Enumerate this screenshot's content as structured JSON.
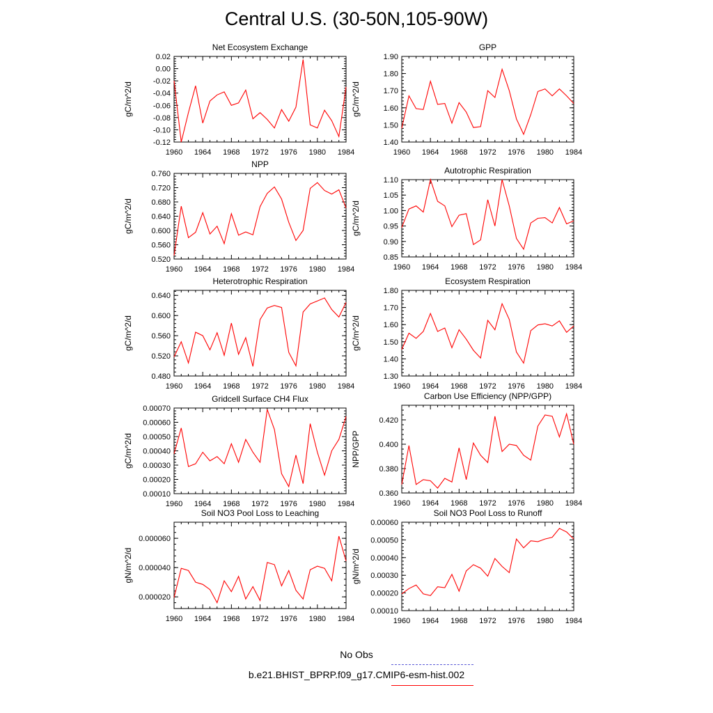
{
  "title": "Central U.S. (30-50N,105-90W)",
  "legend": {
    "entries": [
      {
        "label": "No Obs",
        "color": "#5b5bd6",
        "style": "dashed"
      },
      {
        "label": "b.e21.BHIST_BPRP.f09_g17.CMIP6-esm-hist.002",
        "color": "#ff0000",
        "style": "solid"
      }
    ]
  },
  "chart_data": [
    {
      "type": "line",
      "title": "Net Ecosystem Exchange",
      "ylabel": "gC/m^2/d",
      "xlim": [
        1960,
        1984
      ],
      "ylim": [
        -0.12,
        0.02
      ],
      "xticks": [
        "1960",
        "1964",
        "1968",
        "1972",
        "1976",
        "1980",
        "1984"
      ],
      "yticks": [
        "-0.12",
        "-0.10",
        "-0.08",
        "-0.06",
        "-0.04",
        "-0.02",
        "0.00",
        "0.02"
      ],
      "x": [
        1960,
        1961,
        1962,
        1963,
        1964,
        1965,
        1966,
        1967,
        1968,
        1969,
        1970,
        1971,
        1972,
        1973,
        1974,
        1975,
        1976,
        1977,
        1978,
        1979,
        1980,
        1981,
        1982,
        1983,
        1984
      ],
      "series": [
        {
          "values": [
            -0.02,
            -0.12,
            -0.072,
            -0.028,
            -0.089,
            -0.053,
            -0.043,
            -0.038,
            -0.06,
            -0.056,
            -0.035,
            -0.082,
            -0.072,
            -0.083,
            -0.097,
            -0.067,
            -0.086,
            -0.063,
            0.015,
            -0.092,
            -0.097,
            -0.068,
            -0.085,
            -0.111,
            -0.03
          ],
          "color": "#ff0000"
        }
      ]
    },
    {
      "type": "line",
      "title": "GPP",
      "ylabel": "gC/m^2/d",
      "xlim": [
        1960,
        1984
      ],
      "ylim": [
        1.4,
        1.9
      ],
      "xticks": [
        "1960",
        "1964",
        "1968",
        "1972",
        "1976",
        "1980",
        "1984"
      ],
      "yticks": [
        "1.40",
        "1.50",
        "1.60",
        "1.70",
        "1.80",
        "1.90"
      ],
      "x": [
        1960,
        1961,
        1962,
        1963,
        1964,
        1965,
        1966,
        1967,
        1968,
        1969,
        1970,
        1971,
        1972,
        1973,
        1974,
        1975,
        1976,
        1977,
        1978,
        1979,
        1980,
        1981,
        1982,
        1983,
        1984
      ],
      "series": [
        {
          "values": [
            1.48,
            1.67,
            1.595,
            1.59,
            1.755,
            1.62,
            1.625,
            1.51,
            1.63,
            1.575,
            1.485,
            1.49,
            1.7,
            1.66,
            1.825,
            1.7,
            1.535,
            1.445,
            1.56,
            1.695,
            1.71,
            1.67,
            1.71,
            1.67,
            1.625
          ],
          "color": "#ff0000"
        }
      ]
    },
    {
      "type": "line",
      "title": "NPP",
      "ylabel": "gC/m^2/d",
      "xlim": [
        1960,
        1984
      ],
      "ylim": [
        0.52,
        0.76
      ],
      "xticks": [
        "1960",
        "1964",
        "1968",
        "1972",
        "1976",
        "1980",
        "1984"
      ],
      "yticks": [
        "0.520",
        "0.560",
        "0.600",
        "0.640",
        "0.680",
        "0.720",
        "0.760"
      ],
      "x": [
        1960,
        1961,
        1962,
        1963,
        1964,
        1965,
        1966,
        1967,
        1968,
        1969,
        1970,
        1971,
        1972,
        1973,
        1974,
        1975,
        1976,
        1977,
        1978,
        1979,
        1980,
        1981,
        1982,
        1983,
        1984
      ],
      "series": [
        {
          "values": [
            0.53,
            0.668,
            0.58,
            0.595,
            0.65,
            0.59,
            0.612,
            0.563,
            0.647,
            0.587,
            0.596,
            0.588,
            0.667,
            0.704,
            0.722,
            0.688,
            0.623,
            0.572,
            0.6,
            0.718,
            0.734,
            0.712,
            0.702,
            0.714,
            0.663
          ],
          "color": "#ff0000"
        }
      ]
    },
    {
      "type": "line",
      "title": "Autotrophic Respiration",
      "ylabel": "gC/m^2/d",
      "xlim": [
        1960,
        1984
      ],
      "ylim": [
        0.85,
        1.1
      ],
      "xticks": [
        "1960",
        "1964",
        "1968",
        "1972",
        "1976",
        "1980",
        "1984"
      ],
      "yticks": [
        "0.85",
        "0.90",
        "0.95",
        "1.00",
        "1.05",
        "1.10"
      ],
      "x": [
        1960,
        1961,
        1962,
        1963,
        1964,
        1965,
        1966,
        1967,
        1968,
        1969,
        1970,
        1971,
        1972,
        1973,
        1974,
        1975,
        1976,
        1977,
        1978,
        1979,
        1980,
        1981,
        1982,
        1983,
        1984
      ],
      "series": [
        {
          "values": [
            0.945,
            1.005,
            1.015,
            0.995,
            1.105,
            1.03,
            1.015,
            0.948,
            0.985,
            0.99,
            0.89,
            0.905,
            1.035,
            0.95,
            1.102,
            1.015,
            0.91,
            0.875,
            0.96,
            0.975,
            0.977,
            0.96,
            1.01,
            0.957,
            0.967
          ],
          "color": "#ff0000"
        }
      ]
    },
    {
      "type": "line",
      "title": "Heterotrophic Respiration",
      "ylabel": "gC/m^2/d",
      "xlim": [
        1960,
        1984
      ],
      "ylim": [
        0.48,
        0.65
      ],
      "xticks": [
        "1960",
        "1964",
        "1968",
        "1972",
        "1976",
        "1980",
        "1984"
      ],
      "yticks": [
        "0.480",
        "0.520",
        "0.560",
        "0.600",
        "0.640"
      ],
      "x": [
        1960,
        1961,
        1962,
        1963,
        1964,
        1965,
        1966,
        1967,
        1968,
        1969,
        1970,
        1971,
        1972,
        1973,
        1974,
        1975,
        1976,
        1977,
        1978,
        1979,
        1980,
        1981,
        1982,
        1983,
        1984
      ],
      "series": [
        {
          "values": [
            0.518,
            0.548,
            0.506,
            0.567,
            0.56,
            0.532,
            0.566,
            0.521,
            0.585,
            0.523,
            0.556,
            0.499,
            0.592,
            0.615,
            0.62,
            0.616,
            0.527,
            0.5,
            0.607,
            0.623,
            0.629,
            0.635,
            0.612,
            0.597,
            0.626
          ],
          "color": "#ff0000"
        }
      ]
    },
    {
      "type": "line",
      "title": "Ecosystem Respiration",
      "ylabel": "gC/m^2/d",
      "xlim": [
        1960,
        1984
      ],
      "ylim": [
        1.3,
        1.8
      ],
      "xticks": [
        "1960",
        "1964",
        "1968",
        "1972",
        "1976",
        "1980",
        "1984"
      ],
      "yticks": [
        "1.30",
        "1.40",
        "1.50",
        "1.60",
        "1.70",
        "1.80"
      ],
      "x": [
        1960,
        1961,
        1962,
        1963,
        1964,
        1965,
        1966,
        1967,
        1968,
        1969,
        1970,
        1971,
        1972,
        1973,
        1974,
        1975,
        1976,
        1977,
        1978,
        1979,
        1980,
        1981,
        1982,
        1983,
        1984
      ],
      "series": [
        {
          "values": [
            1.455,
            1.55,
            1.52,
            1.56,
            1.665,
            1.56,
            1.58,
            1.465,
            1.57,
            1.515,
            1.45,
            1.405,
            1.625,
            1.57,
            1.722,
            1.63,
            1.44,
            1.375,
            1.565,
            1.598,
            1.605,
            1.592,
            1.622,
            1.555,
            1.592
          ],
          "color": "#ff0000"
        }
      ]
    },
    {
      "type": "line",
      "title": "Gridcell Surface CH4 Flux",
      "ylabel": "gC/m^2/d",
      "xlim": [
        1960,
        1984
      ],
      "ylim": [
        0.0001,
        0.0007
      ],
      "xticks": [
        "1960",
        "1964",
        "1968",
        "1972",
        "1976",
        "1980",
        "1984"
      ],
      "yticks": [
        "0.00010",
        "0.00020",
        "0.00030",
        "0.00040",
        "0.00050",
        "0.00060",
        "0.00070"
      ],
      "x": [
        1960,
        1961,
        1962,
        1963,
        1964,
        1965,
        1966,
        1967,
        1968,
        1969,
        1970,
        1971,
        1972,
        1973,
        1974,
        1975,
        1976,
        1977,
        1978,
        1979,
        1980,
        1981,
        1982,
        1983,
        1984
      ],
      "series": [
        {
          "values": [
            0.00038,
            0.00056,
            0.00029,
            0.00031,
            0.00039,
            0.00033,
            0.00036,
            0.00031,
            0.00045,
            0.00032,
            0.00048,
            0.00039,
            0.00032,
            0.00069,
            0.00055,
            0.00024,
            0.00015,
            0.00037,
            0.00017,
            0.00059,
            0.00039,
            0.00023,
            0.0004,
            0.00048,
            0.00064
          ],
          "color": "#ff0000"
        }
      ]
    },
    {
      "type": "line",
      "title": "Carbon Use Efficiency (NPP/GPP)",
      "ylabel": "NPP/GPP",
      "xlim": [
        1960,
        1984
      ],
      "ylim": [
        0.36,
        0.432
      ],
      "xticks": [
        "1960",
        "1964",
        "1968",
        "1972",
        "1976",
        "1980",
        "1984"
      ],
      "yticks": [
        "0.360",
        "0.380",
        "0.400",
        "0.420"
      ],
      "x": [
        1960,
        1961,
        1962,
        1963,
        1964,
        1965,
        1966,
        1967,
        1968,
        1969,
        1970,
        1971,
        1972,
        1973,
        1974,
        1975,
        1976,
        1977,
        1978,
        1979,
        1980,
        1981,
        1982,
        1983,
        1984
      ],
      "series": [
        {
          "values": [
            0.367,
            0.399,
            0.367,
            0.371,
            0.37,
            0.364,
            0.372,
            0.369,
            0.397,
            0.371,
            0.401,
            0.391,
            0.385,
            0.423,
            0.394,
            0.4,
            0.399,
            0.391,
            0.387,
            0.415,
            0.424,
            0.423,
            0.406,
            0.425,
            0.4
          ],
          "color": "#ff0000"
        }
      ]
    },
    {
      "type": "line",
      "title": "Soil NO3 Pool Loss to Leaching",
      "ylabel": "gN/m^2/d",
      "xlim": [
        1960,
        1984
      ],
      "ylim": [
        1.2e-05,
        7.1e-05
      ],
      "xticks": [
        "1960",
        "1964",
        "1968",
        "1972",
        "1976",
        "1980",
        "1984"
      ],
      "yticks": [
        "0.000020",
        "0.000040",
        "0.000060"
      ],
      "x": [
        1960,
        1961,
        1962,
        1963,
        1964,
        1965,
        1966,
        1967,
        1968,
        1969,
        1970,
        1971,
        1972,
        1973,
        1974,
        1975,
        1976,
        1977,
        1978,
        1979,
        1980,
        1981,
        1982,
        1983,
        1984
      ],
      "series": [
        {
          "values": [
            1.95e-05,
            3.95e-05,
            3.8e-05,
            3e-05,
            2.85e-05,
            2.5e-05,
            1.6e-05,
            3.1e-05,
            2.35e-05,
            3.4e-05,
            1.85e-05,
            2.7e-05,
            1.75e-05,
            4.35e-05,
            4.2e-05,
            2.75e-05,
            3.8e-05,
            2.45e-05,
            1.85e-05,
            3.85e-05,
            4.1e-05,
            3.95e-05,
            3.1e-05,
            6.15e-05,
            4.45e-05
          ],
          "color": "#ff0000"
        }
      ]
    },
    {
      "type": "line",
      "title": "Soil NO3 Pool Loss to Runoff",
      "ylabel": "gN/m^2/d",
      "xlim": [
        1960,
        1984
      ],
      "ylim": [
        0.0001,
        0.0006
      ],
      "xticks": [
        "1960",
        "1964",
        "1968",
        "1972",
        "1976",
        "1980",
        "1984"
      ],
      "yticks": [
        "0.00010",
        "0.00020",
        "0.00030",
        "0.00040",
        "0.00050",
        "0.00060"
      ],
      "x": [
        1960,
        1961,
        1962,
        1963,
        1964,
        1965,
        1966,
        1967,
        1968,
        1969,
        1970,
        1971,
        1972,
        1973,
        1974,
        1975,
        1976,
        1977,
        1978,
        1979,
        1980,
        1981,
        1982,
        1983,
        1984
      ],
      "series": [
        {
          "values": [
            0.000195,
            0.000225,
            0.000245,
            0.000195,
            0.000185,
            0.000235,
            0.00023,
            0.000305,
            0.00021,
            0.000325,
            0.00036,
            0.00034,
            0.000295,
            0.000395,
            0.00035,
            0.000315,
            0.000505,
            0.000455,
            0.000495,
            0.00049,
            0.000505,
            0.000515,
            0.000565,
            0.000545,
            0.000505
          ],
          "color": "#ff0000"
        }
      ]
    }
  ]
}
